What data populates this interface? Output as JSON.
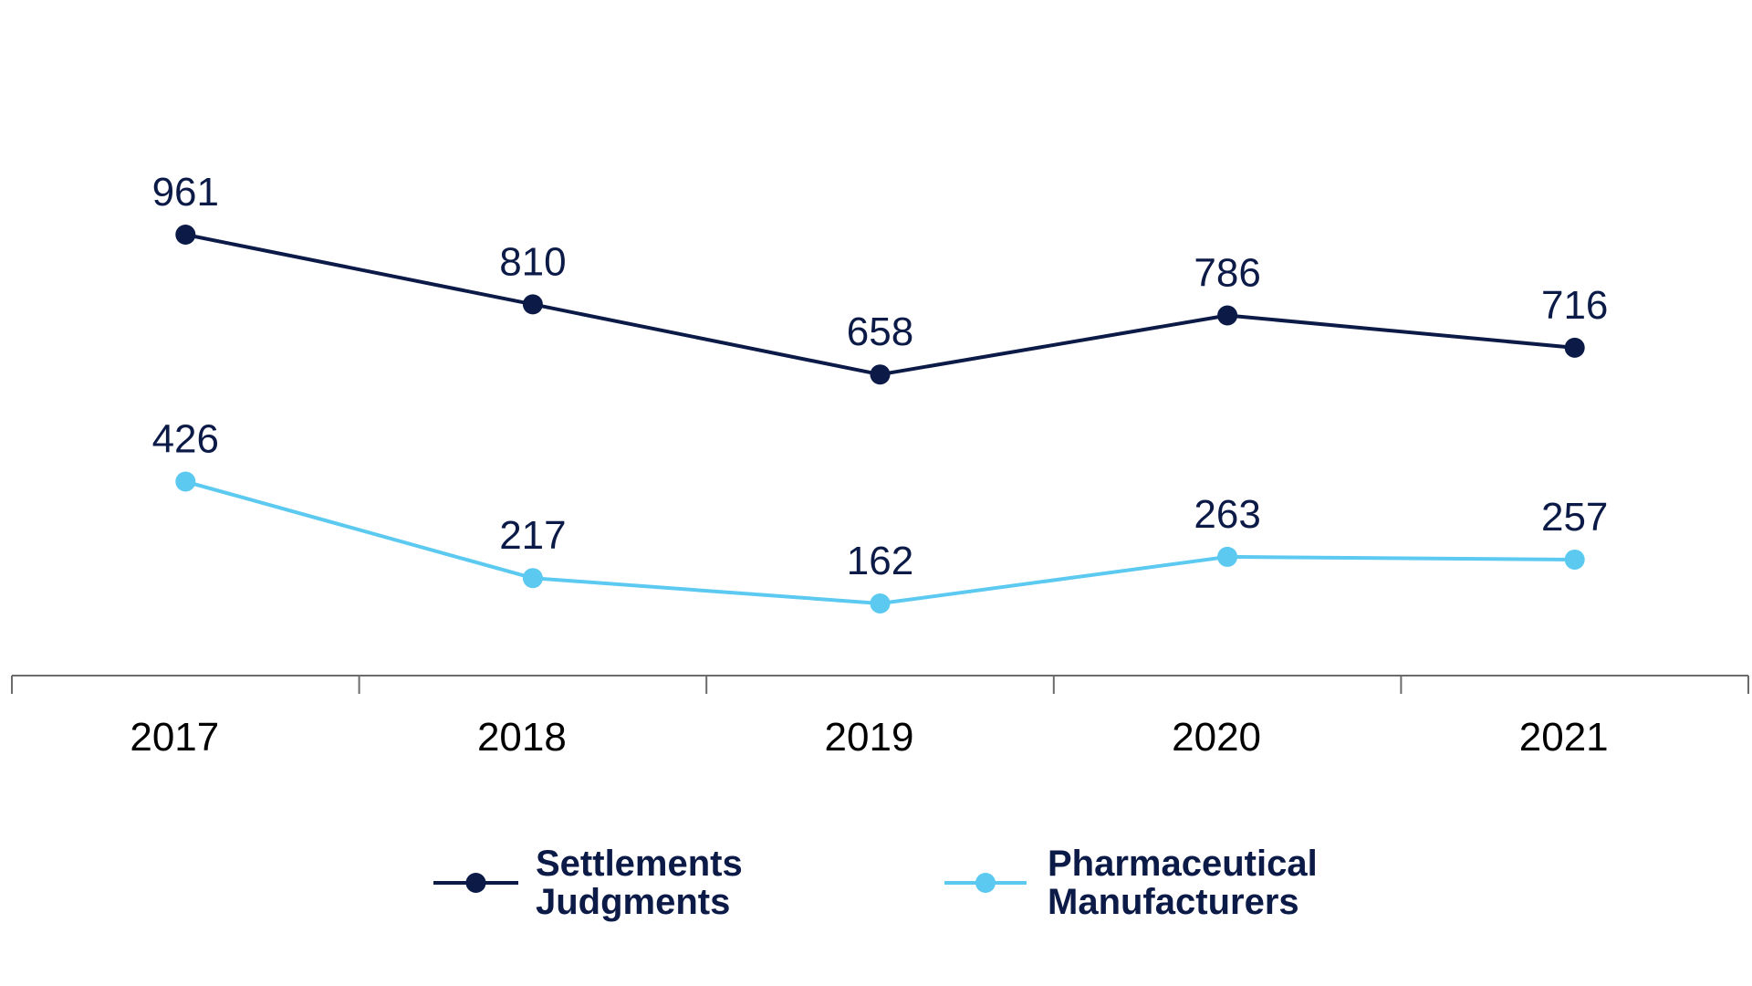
{
  "chart_data": {
    "type": "line",
    "categories": [
      "2017",
      "2018",
      "2019",
      "2020",
      "2021"
    ],
    "series": [
      {
        "name": "Settlements Judgments",
        "legend_lines": [
          "Settlements",
          "Judgments"
        ],
        "values": [
          961,
          810,
          658,
          786,
          716
        ],
        "color": "#0b1a47"
      },
      {
        "name": "Pharmaceutical Manufacturers",
        "legend_lines": [
          "Pharmaceutical",
          "Manufacturers"
        ],
        "values": [
          426,
          217,
          162,
          263,
          257
        ],
        "color": "#5bc9f0"
      }
    ],
    "ylim": [
      0,
      1400
    ],
    "grid": false,
    "legend_position": "bottom",
    "data_labels": true,
    "axis_color": "#6b6b6b",
    "text_color": "#000000",
    "label_color": "#0b1a47"
  }
}
